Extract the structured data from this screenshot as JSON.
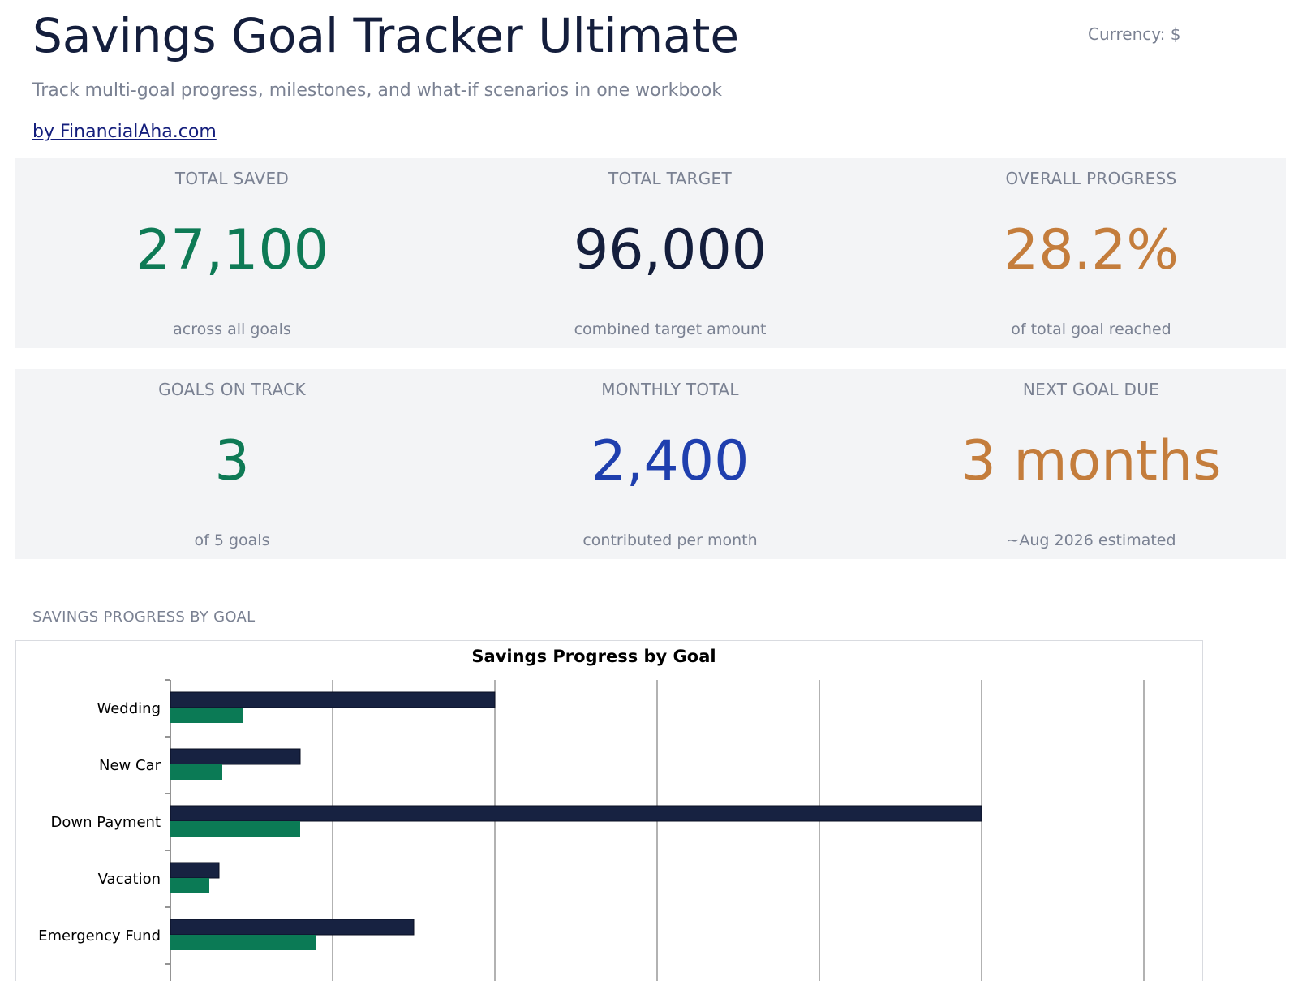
{
  "header": {
    "title": "Savings Goal Tracker Ultimate",
    "currency_label": "Currency: $",
    "subtitle": "Track multi-goal progress, milestones, and what-if scenarios in one workbook",
    "byline": "by FinancialAha.com"
  },
  "kpis": {
    "total_saved": {
      "label": "TOTAL SAVED",
      "value": "27,100",
      "note": "across all goals",
      "color": "#0e7a55"
    },
    "total_target": {
      "label": "TOTAL TARGET",
      "value": "96,000",
      "note": "combined target amount",
      "color": "#141e3c"
    },
    "overall_progress": {
      "label": "OVERALL PROGRESS",
      "value": "28.2%",
      "note": "of total goal reached",
      "color": "#c47d3c"
    },
    "goals_on_track": {
      "label": "GOALS ON TRACK",
      "value": "3",
      "note": "of 5 goals",
      "color": "#0e7a55"
    },
    "monthly_total": {
      "label": "MONTHLY TOTAL",
      "value": "2,400",
      "note": "contributed per month",
      "color": "#1f3fae"
    },
    "next_goal_due": {
      "label": "NEXT GOAL DUE",
      "value": "3 months",
      "note": "~Aug 2026 estimated",
      "color": "#c47d3c"
    }
  },
  "section": {
    "chart_label": "SAVINGS PROGRESS BY GOAL"
  },
  "chart_data": {
    "type": "bar",
    "orientation": "horizontal",
    "title": "Savings Progress by Goal",
    "categories": [
      "Wedding",
      "New Car",
      "Down Payment",
      "Vacation",
      "Emergency Fund"
    ],
    "series": [
      {
        "values": [
          20000,
          8000,
          50000,
          3000,
          15000
        ],
        "color": "#172241"
      },
      {
        "values": [
          4500,
          3200,
          8000,
          2400,
          9000
        ],
        "color": "#0b7a55"
      }
    ],
    "xlim": [
      0,
      60000
    ],
    "x_grid_step": 10000,
    "grid": true,
    "legend": "none"
  }
}
